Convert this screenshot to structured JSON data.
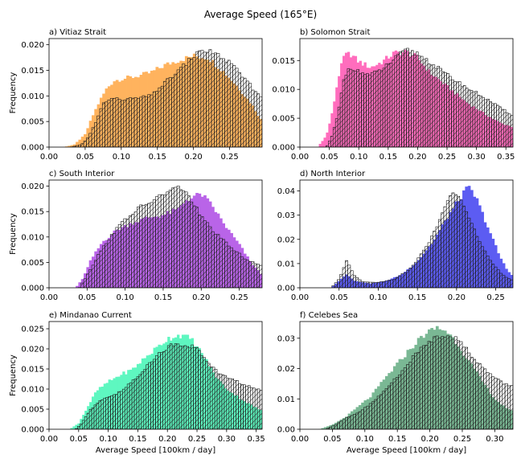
{
  "figure": {
    "suptitle": "Average Speed (165°E)",
    "xlabel": "Average Speed [100km / day]",
    "ylabel": "Frequency"
  },
  "chart_data": [
    {
      "type": "histogram",
      "title": "a) Vitiaz Strait",
      "fill_color": "#ffb35e",
      "xlim": [
        0.0,
        0.295
      ],
      "ylim": [
        0.0,
        0.0212
      ],
      "xticks": [
        "0.00",
        "0.05",
        "0.10",
        "0.15",
        "0.20",
        "0.25"
      ],
      "yticks": [
        "0.000",
        "0.005",
        "0.010",
        "0.015",
        "0.020"
      ],
      "bins": 80,
      "fill_profile": [
        [
          0.0,
          0.0
        ],
        [
          0.02,
          0.0
        ],
        [
          0.035,
          0.0005
        ],
        [
          0.05,
          0.0025
        ],
        [
          0.06,
          0.006
        ],
        [
          0.07,
          0.009
        ],
        [
          0.08,
          0.0115
        ],
        [
          0.09,
          0.013
        ],
        [
          0.1,
          0.0133
        ],
        [
          0.12,
          0.0138
        ],
        [
          0.14,
          0.0145
        ],
        [
          0.16,
          0.016
        ],
        [
          0.18,
          0.017
        ],
        [
          0.2,
          0.0178
        ],
        [
          0.22,
          0.0175
        ],
        [
          0.24,
          0.015
        ],
        [
          0.26,
          0.012
        ],
        [
          0.28,
          0.0085
        ],
        [
          0.295,
          0.005
        ]
      ],
      "outline_profile": [
        [
          0.0,
          0.0
        ],
        [
          0.03,
          0.0
        ],
        [
          0.045,
          0.0005
        ],
        [
          0.055,
          0.002
        ],
        [
          0.065,
          0.005
        ],
        [
          0.075,
          0.0085
        ],
        [
          0.085,
          0.0095
        ],
        [
          0.1,
          0.0093
        ],
        [
          0.12,
          0.0095
        ],
        [
          0.14,
          0.01
        ],
        [
          0.16,
          0.0125
        ],
        [
          0.18,
          0.015
        ],
        [
          0.2,
          0.0178
        ],
        [
          0.215,
          0.019
        ],
        [
          0.23,
          0.0183
        ],
        [
          0.25,
          0.0165
        ],
        [
          0.27,
          0.0135
        ],
        [
          0.285,
          0.011
        ],
        [
          0.295,
          0.0095
        ]
      ]
    },
    {
      "type": "histogram",
      "title": "b) Solomon Strait",
      "fill_color": "#ff6dbd",
      "xlim": [
        0.0,
        0.362
      ],
      "ylim": [
        0.0,
        0.0188
      ],
      "xticks": [
        "0.00",
        "0.05",
        "0.10",
        "0.15",
        "0.20",
        "0.25",
        "0.30",
        "0.35"
      ],
      "yticks": [
        "0.000",
        "0.005",
        "0.010",
        "0.015"
      ],
      "bins": 90,
      "fill_profile": [
        [
          0.0,
          0.0
        ],
        [
          0.03,
          0.0
        ],
        [
          0.045,
          0.002
        ],
        [
          0.055,
          0.006
        ],
        [
          0.065,
          0.012
        ],
        [
          0.075,
          0.0158
        ],
        [
          0.085,
          0.0162
        ],
        [
          0.1,
          0.0148
        ],
        [
          0.12,
          0.0138
        ],
        [
          0.14,
          0.0148
        ],
        [
          0.16,
          0.0163
        ],
        [
          0.18,
          0.0165
        ],
        [
          0.2,
          0.0155
        ],
        [
          0.22,
          0.013
        ],
        [
          0.25,
          0.0105
        ],
        [
          0.28,
          0.008
        ],
        [
          0.31,
          0.006
        ],
        [
          0.34,
          0.0042
        ],
        [
          0.362,
          0.0035
        ]
      ],
      "outline_profile": [
        [
          0.0,
          0.0
        ],
        [
          0.045,
          0.0
        ],
        [
          0.055,
          0.002
        ],
        [
          0.065,
          0.006
        ],
        [
          0.075,
          0.012
        ],
        [
          0.085,
          0.014
        ],
        [
          0.1,
          0.013
        ],
        [
          0.12,
          0.0125
        ],
        [
          0.14,
          0.0135
        ],
        [
          0.16,
          0.0152
        ],
        [
          0.18,
          0.0168
        ],
        [
          0.2,
          0.0162
        ],
        [
          0.22,
          0.0148
        ],
        [
          0.25,
          0.0125
        ],
        [
          0.28,
          0.0105
        ],
        [
          0.31,
          0.0088
        ],
        [
          0.34,
          0.0068
        ],
        [
          0.362,
          0.0055
        ]
      ]
    },
    {
      "type": "histogram",
      "title": "c) South Interior",
      "fill_color": "#b964e8",
      "xlim": [
        0.0,
        0.28
      ],
      "ylim": [
        0.0,
        0.0212
      ],
      "xticks": [
        "0.00",
        "0.05",
        "0.10",
        "0.15",
        "0.20",
        "0.25"
      ],
      "yticks": [
        "0.000",
        "0.005",
        "0.010",
        "0.015",
        "0.020"
      ],
      "bins": 80,
      "fill_profile": [
        [
          0.0,
          0.0
        ],
        [
          0.035,
          0.0
        ],
        [
          0.045,
          0.002
        ],
        [
          0.055,
          0.0055
        ],
        [
          0.07,
          0.009
        ],
        [
          0.09,
          0.0115
        ],
        [
          0.11,
          0.0128
        ],
        [
          0.13,
          0.0138
        ],
        [
          0.15,
          0.0143
        ],
        [
          0.17,
          0.0155
        ],
        [
          0.18,
          0.0173
        ],
        [
          0.2,
          0.0185
        ],
        [
          0.215,
          0.016
        ],
        [
          0.23,
          0.0125
        ],
        [
          0.25,
          0.0085
        ],
        [
          0.265,
          0.005
        ],
        [
          0.28,
          0.0025
        ]
      ],
      "outline_profile": [
        [
          0.0,
          0.0
        ],
        [
          0.04,
          0.0
        ],
        [
          0.05,
          0.0025
        ],
        [
          0.065,
          0.0065
        ],
        [
          0.08,
          0.01
        ],
        [
          0.1,
          0.0135
        ],
        [
          0.12,
          0.0158
        ],
        [
          0.14,
          0.0175
        ],
        [
          0.16,
          0.0192
        ],
        [
          0.175,
          0.0198
        ],
        [
          0.19,
          0.0165
        ],
        [
          0.2,
          0.014
        ],
        [
          0.22,
          0.0105
        ],
        [
          0.24,
          0.0078
        ],
        [
          0.26,
          0.0055
        ],
        [
          0.28,
          0.0042
        ]
      ]
    },
    {
      "type": "histogram",
      "title": "d) North Interior",
      "fill_color": "#5c5cf2",
      "xlim": [
        0.0,
        0.272
      ],
      "ylim": [
        0.0,
        0.0445
      ],
      "xticks": [
        "0.00",
        "0.05",
        "0.10",
        "0.15",
        "0.20",
        "0.25"
      ],
      "yticks": [
        "0.00",
        "0.01",
        "0.02",
        "0.03",
        "0.04"
      ],
      "bins": 80,
      "fill_profile": [
        [
          0.0,
          0.0
        ],
        [
          0.04,
          0.0
        ],
        [
          0.05,
          0.003
        ],
        [
          0.06,
          0.0058
        ],
        [
          0.07,
          0.0028
        ],
        [
          0.09,
          0.0018
        ],
        [
          0.11,
          0.0028
        ],
        [
          0.13,
          0.0055
        ],
        [
          0.15,
          0.011
        ],
        [
          0.17,
          0.019
        ],
        [
          0.19,
          0.03
        ],
        [
          0.205,
          0.0375
        ],
        [
          0.215,
          0.0415
        ],
        [
          0.225,
          0.037
        ],
        [
          0.24,
          0.025
        ],
        [
          0.255,
          0.013
        ],
        [
          0.265,
          0.007
        ],
        [
          0.272,
          0.005
        ]
      ],
      "outline_profile": [
        [
          0.0,
          0.0
        ],
        [
          0.04,
          0.0
        ],
        [
          0.05,
          0.0035
        ],
        [
          0.06,
          0.0115
        ],
        [
          0.07,
          0.0048
        ],
        [
          0.08,
          0.0025
        ],
        [
          0.1,
          0.0022
        ],
        [
          0.12,
          0.0035
        ],
        [
          0.14,
          0.0075
        ],
        [
          0.16,
          0.016
        ],
        [
          0.18,
          0.029
        ],
        [
          0.195,
          0.0395
        ],
        [
          0.205,
          0.0375
        ],
        [
          0.215,
          0.029
        ],
        [
          0.23,
          0.019
        ],
        [
          0.245,
          0.01
        ],
        [
          0.26,
          0.005
        ],
        [
          0.272,
          0.003
        ]
      ]
    },
    {
      "type": "histogram",
      "title": "e) Mindanao Current",
      "fill_color": "#5ef7c0",
      "xlim": [
        0.0,
        0.36
      ],
      "ylim": [
        0.0,
        0.0268
      ],
      "xticks": [
        "0.00",
        "0.05",
        "0.10",
        "0.15",
        "0.20",
        "0.25",
        "0.30",
        "0.35"
      ],
      "yticks": [
        "0.000",
        "0.005",
        "0.010",
        "0.015",
        "0.020",
        "0.025"
      ],
      "bins": 90,
      "fill_profile": [
        [
          0.0,
          0.0
        ],
        [
          0.035,
          0.0
        ],
        [
          0.05,
          0.0015
        ],
        [
          0.065,
          0.0055
        ],
        [
          0.08,
          0.0095
        ],
        [
          0.1,
          0.0118
        ],
        [
          0.12,
          0.0135
        ],
        [
          0.14,
          0.0148
        ],
        [
          0.16,
          0.0175
        ],
        [
          0.18,
          0.02
        ],
        [
          0.2,
          0.0225
        ],
        [
          0.22,
          0.0235
        ],
        [
          0.24,
          0.0225
        ],
        [
          0.26,
          0.0185
        ],
        [
          0.28,
          0.0135
        ],
        [
          0.3,
          0.01
        ],
        [
          0.33,
          0.007
        ],
        [
          0.36,
          0.0045
        ]
      ],
      "outline_profile": [
        [
          0.0,
          0.0
        ],
        [
          0.045,
          0.0
        ],
        [
          0.055,
          0.0015
        ],
        [
          0.07,
          0.005
        ],
        [
          0.09,
          0.0075
        ],
        [
          0.11,
          0.0085
        ],
        [
          0.13,
          0.0105
        ],
        [
          0.15,
          0.013
        ],
        [
          0.17,
          0.0168
        ],
        [
          0.19,
          0.0192
        ],
        [
          0.21,
          0.0212
        ],
        [
          0.23,
          0.0212
        ],
        [
          0.25,
          0.02
        ],
        [
          0.27,
          0.0165
        ],
        [
          0.29,
          0.0135
        ],
        [
          0.31,
          0.0125
        ],
        [
          0.33,
          0.011
        ],
        [
          0.36,
          0.0095
        ]
      ]
    },
    {
      "type": "histogram",
      "title": "f) Celebes Sea",
      "fill_color": "#7ab894",
      "xlim": [
        0.0,
        0.328
      ],
      "ylim": [
        0.0,
        0.0355
      ],
      "xticks": [
        "0.00",
        "0.05",
        "0.10",
        "0.15",
        "0.20",
        "0.25",
        "0.30"
      ],
      "yticks": [
        "0.00",
        "0.01",
        "0.02",
        "0.03"
      ],
      "bins": 80,
      "fill_profile": [
        [
          0.0,
          0.0
        ],
        [
          0.03,
          0.0
        ],
        [
          0.05,
          0.0015
        ],
        [
          0.07,
          0.004
        ],
        [
          0.09,
          0.0075
        ],
        [
          0.11,
          0.011
        ],
        [
          0.13,
          0.0165
        ],
        [
          0.15,
          0.0215
        ],
        [
          0.17,
          0.0265
        ],
        [
          0.19,
          0.031
        ],
        [
          0.21,
          0.0335
        ],
        [
          0.225,
          0.0325
        ],
        [
          0.24,
          0.029
        ],
        [
          0.26,
          0.0225
        ],
        [
          0.28,
          0.016
        ],
        [
          0.3,
          0.01
        ],
        [
          0.32,
          0.0065
        ],
        [
          0.328,
          0.006
        ]
      ],
      "outline_profile": [
        [
          0.0,
          0.0
        ],
        [
          0.04,
          0.0
        ],
        [
          0.055,
          0.0015
        ],
        [
          0.07,
          0.0035
        ],
        [
          0.09,
          0.0055
        ],
        [
          0.11,
          0.0085
        ],
        [
          0.13,
          0.0125
        ],
        [
          0.15,
          0.0175
        ],
        [
          0.17,
          0.0225
        ],
        [
          0.19,
          0.0275
        ],
        [
          0.21,
          0.0305
        ],
        [
          0.23,
          0.0315
        ],
        [
          0.25,
          0.028
        ],
        [
          0.27,
          0.023
        ],
        [
          0.29,
          0.0185
        ],
        [
          0.31,
          0.0155
        ],
        [
          0.328,
          0.014
        ]
      ]
    }
  ]
}
